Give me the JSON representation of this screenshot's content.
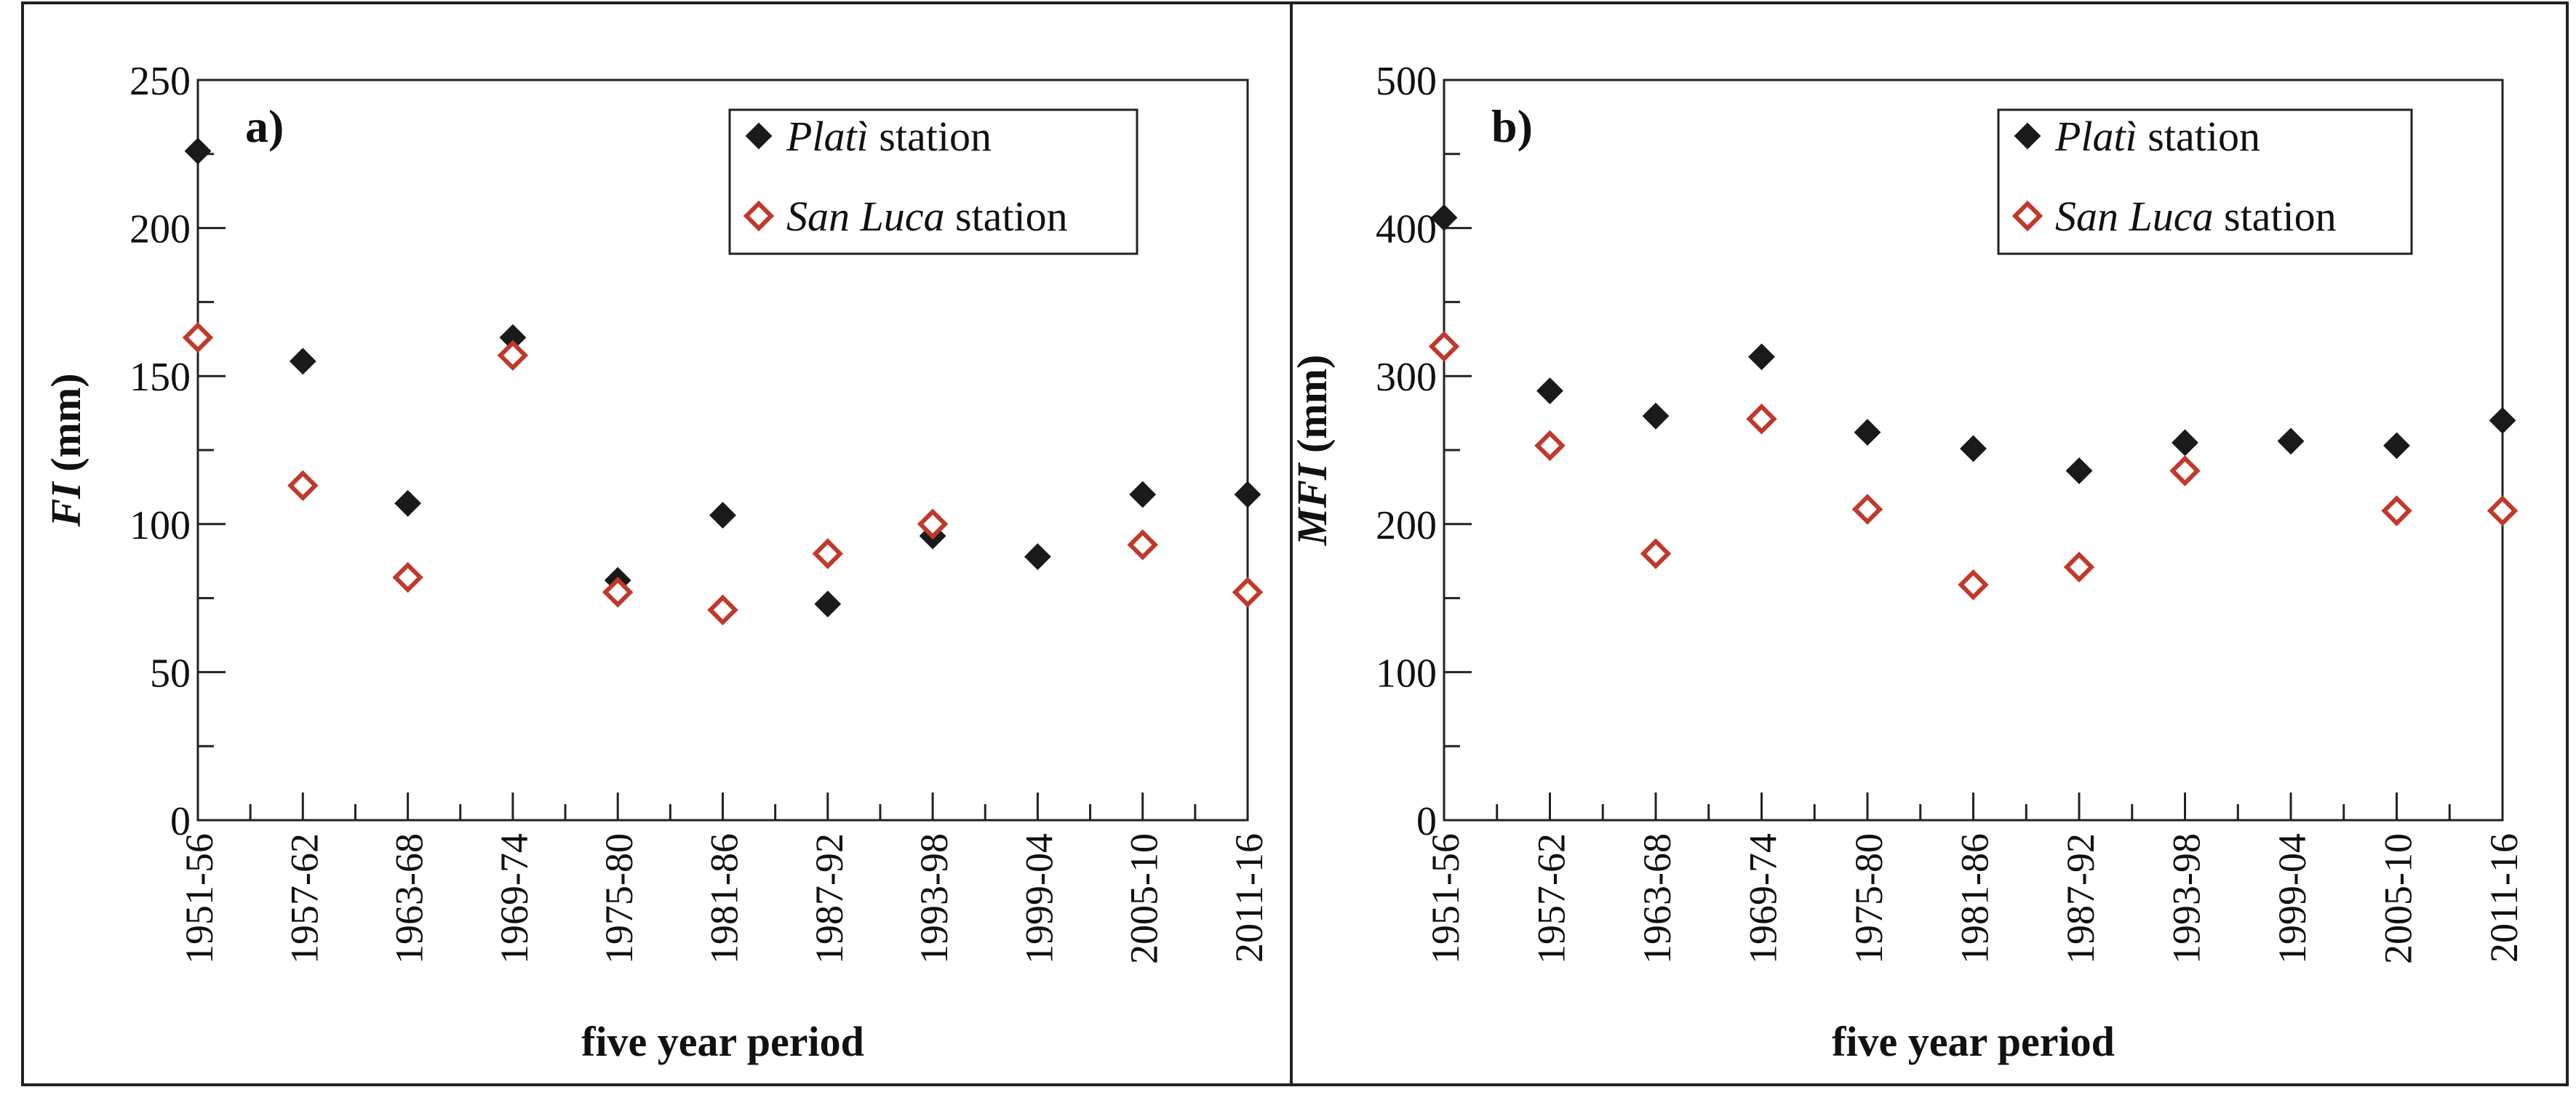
{
  "chart_data": [
    {
      "type": "scatter",
      "panel_label": "a)",
      "title": "",
      "xlabel": "five year period",
      "ylabel_var": "FI",
      "ylabel_unit": " (mm)",
      "ylim": [
        0,
        250
      ],
      "y_major_ticks": [
        0,
        50,
        100,
        150,
        200,
        250
      ],
      "y_minor_step": 25,
      "categories": [
        "1951-56",
        "1957-62",
        "1963-68",
        "1969-74",
        "1975-80",
        "1981-86",
        "1987-92",
        "1993-98",
        "1999-04",
        "2005-10",
        "2011-16"
      ],
      "series": [
        {
          "name": "Platì",
          "legend_italic": "Platì",
          "legend_rest": " station",
          "marker": "filled-diamond",
          "color": "#1a1a1a",
          "values": [
            226,
            155,
            107,
            163,
            81,
            103,
            73,
            96,
            89,
            110,
            110
          ]
        },
        {
          "name": "San Luca",
          "legend_italic": "San Luca",
          "legend_rest": " station",
          "marker": "open-diamond",
          "color": "#c0392b",
          "values": [
            163,
            113,
            82,
            157,
            77,
            71,
            90,
            100,
            null,
            93,
            77
          ]
        }
      ]
    },
    {
      "type": "scatter",
      "panel_label": "b)",
      "title": "",
      "xlabel": "five year period",
      "ylabel_var": "MFI",
      "ylabel_unit": " (mm)",
      "ylim": [
        0,
        500
      ],
      "y_major_ticks": [
        0,
        100,
        200,
        300,
        400,
        500
      ],
      "y_minor_step": 50,
      "categories": [
        "1951-56",
        "1957-62",
        "1963-68",
        "1969-74",
        "1975-80",
        "1981-86",
        "1987-92",
        "1993-98",
        "1999-04",
        "2005-10",
        "2011-16"
      ],
      "series": [
        {
          "name": "Platì",
          "legend_italic": "Platì",
          "legend_rest": " station",
          "marker": "filled-diamond",
          "color": "#1a1a1a",
          "values": [
            407,
            290,
            273,
            313,
            262,
            251,
            236,
            255,
            256,
            253,
            270
          ]
        },
        {
          "name": "San Luca",
          "legend_italic": "San Luca",
          "legend_rest": " station",
          "marker": "open-diamond",
          "color": "#c0392b",
          "values": [
            320,
            253,
            180,
            271,
            210,
            159,
            171,
            236,
            null,
            209,
            209
          ]
        }
      ]
    }
  ]
}
